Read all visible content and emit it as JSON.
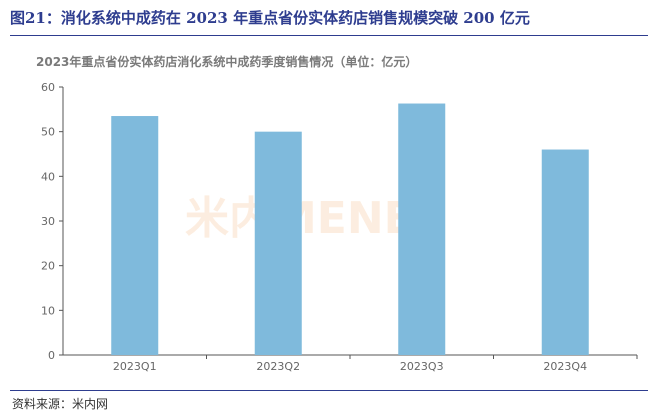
{
  "figure": {
    "title": "图21：消化系统中成药在 2023 年重点省份实体药店销售规模突破 200 亿元",
    "source": "资料来源：米内网"
  },
  "watermark": {
    "text": "米内MENET"
  },
  "colors": {
    "bar": "#7fbadc",
    "title": "#2e3d8f"
  },
  "chart_data": {
    "type": "bar",
    "title": "2023年重点省份实体药店消化系统中成药季度销售情况（单位：亿元）",
    "categories": [
      "2023Q1",
      "2023Q2",
      "2023Q3",
      "2023Q4"
    ],
    "values": [
      53.5,
      50.0,
      56.3,
      46.0
    ],
    "xlabel": "",
    "ylabel": "",
    "ylim": [
      0,
      60
    ],
    "yticks": [
      0,
      10,
      20,
      30,
      40,
      50,
      60
    ],
    "grid": false,
    "legend": "none"
  }
}
